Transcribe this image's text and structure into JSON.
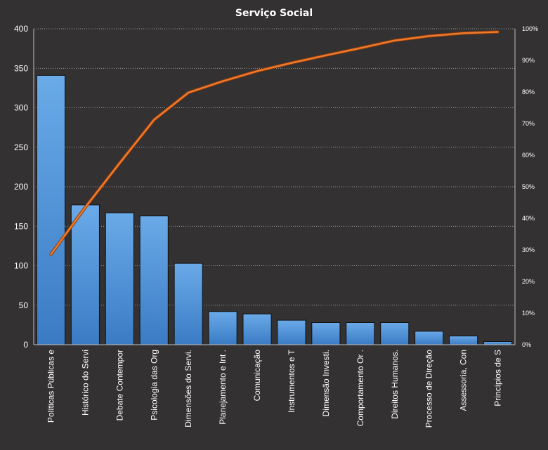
{
  "chart_data": {
    "type": "bar",
    "title": "Serviço Social",
    "categories": [
      "Políticas Públicas e",
      "Histórico do Servi",
      "Debate Contempor",
      "Psicologia das Org",
      "Dimensões do Servi.",
      "Planejamento  e Int .",
      "Comunicação",
      "Instrumentos  e T",
      "Dimensão Investi.",
      "Comportamento  Or .",
      "Direitos Humanos.",
      "Processo de Direção",
      "Assessoria, Con",
      "Princípios de S"
    ],
    "series": [
      {
        "type": "bar",
        "values": [
          341,
          177,
          167,
          163,
          103,
          42,
          39,
          31,
          28,
          28,
          28,
          17,
          11,
          4
        ]
      },
      {
        "type": "line",
        "axis": "secondary",
        "values": [
          0.286,
          0.435,
          0.575,
          0.712,
          0.798,
          0.834,
          0.866,
          0.892,
          0.916,
          0.939,
          0.963,
          0.977,
          0.986,
          0.99
        ]
      }
    ],
    "ylim": [
      0,
      400
    ],
    "yticks": [
      0,
      50,
      100,
      150,
      200,
      250,
      300,
      350,
      400
    ],
    "y2lim": [
      0,
      1
    ],
    "y2ticks": [
      "0%",
      "10%",
      "20%",
      "30%",
      "40%",
      "50%",
      "60%",
      "70%",
      "80%",
      "90%",
      "100%"
    ],
    "grid": true,
    "colors": {
      "bar": "#4a8fd6",
      "bar_light": "#6aaae8",
      "bar_dark": "#3a7bc4",
      "line": "#f07a2c",
      "background": "#333131"
    }
  }
}
